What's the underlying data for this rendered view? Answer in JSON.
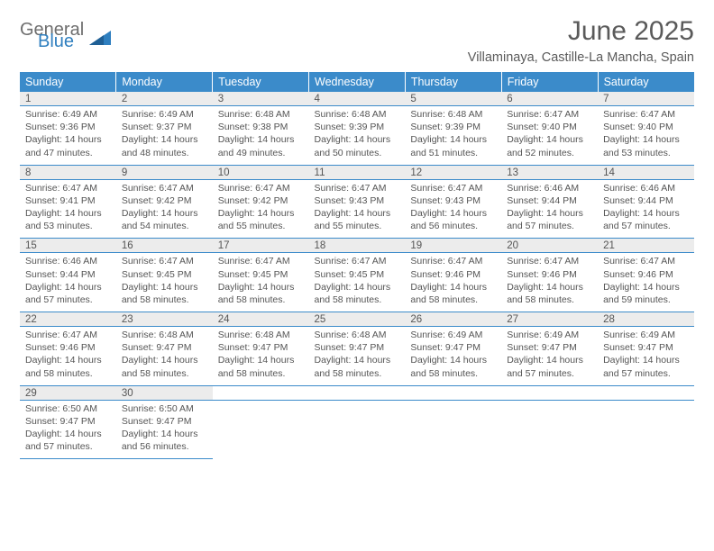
{
  "logo": {
    "text1": "General",
    "text2": "Blue"
  },
  "title": "June 2025",
  "location": "Villaminaya, Castille-La Mancha, Spain",
  "colors": {
    "header_bg": "#3b8bca",
    "header_text": "#ffffff",
    "daynum_bg": "#ececec",
    "border": "#3b8bca",
    "body_text": "#555555",
    "logo_gray": "#6e6e6e",
    "logo_blue": "#2f7fbf"
  },
  "weekdays": [
    "Sunday",
    "Monday",
    "Tuesday",
    "Wednesday",
    "Thursday",
    "Friday",
    "Saturday"
  ],
  "weeks": [
    [
      {
        "n": "1",
        "sr": "6:49 AM",
        "ss": "9:36 PM",
        "dl": "14 hours and 47 minutes."
      },
      {
        "n": "2",
        "sr": "6:49 AM",
        "ss": "9:37 PM",
        "dl": "14 hours and 48 minutes."
      },
      {
        "n": "3",
        "sr": "6:48 AM",
        "ss": "9:38 PM",
        "dl": "14 hours and 49 minutes."
      },
      {
        "n": "4",
        "sr": "6:48 AM",
        "ss": "9:39 PM",
        "dl": "14 hours and 50 minutes."
      },
      {
        "n": "5",
        "sr": "6:48 AM",
        "ss": "9:39 PM",
        "dl": "14 hours and 51 minutes."
      },
      {
        "n": "6",
        "sr": "6:47 AM",
        "ss": "9:40 PM",
        "dl": "14 hours and 52 minutes."
      },
      {
        "n": "7",
        "sr": "6:47 AM",
        "ss": "9:40 PM",
        "dl": "14 hours and 53 minutes."
      }
    ],
    [
      {
        "n": "8",
        "sr": "6:47 AM",
        "ss": "9:41 PM",
        "dl": "14 hours and 53 minutes."
      },
      {
        "n": "9",
        "sr": "6:47 AM",
        "ss": "9:42 PM",
        "dl": "14 hours and 54 minutes."
      },
      {
        "n": "10",
        "sr": "6:47 AM",
        "ss": "9:42 PM",
        "dl": "14 hours and 55 minutes."
      },
      {
        "n": "11",
        "sr": "6:47 AM",
        "ss": "9:43 PM",
        "dl": "14 hours and 55 minutes."
      },
      {
        "n": "12",
        "sr": "6:47 AM",
        "ss": "9:43 PM",
        "dl": "14 hours and 56 minutes."
      },
      {
        "n": "13",
        "sr": "6:46 AM",
        "ss": "9:44 PM",
        "dl": "14 hours and 57 minutes."
      },
      {
        "n": "14",
        "sr": "6:46 AM",
        "ss": "9:44 PM",
        "dl": "14 hours and 57 minutes."
      }
    ],
    [
      {
        "n": "15",
        "sr": "6:46 AM",
        "ss": "9:44 PM",
        "dl": "14 hours and 57 minutes."
      },
      {
        "n": "16",
        "sr": "6:47 AM",
        "ss": "9:45 PM",
        "dl": "14 hours and 58 minutes."
      },
      {
        "n": "17",
        "sr": "6:47 AM",
        "ss": "9:45 PM",
        "dl": "14 hours and 58 minutes."
      },
      {
        "n": "18",
        "sr": "6:47 AM",
        "ss": "9:45 PM",
        "dl": "14 hours and 58 minutes."
      },
      {
        "n": "19",
        "sr": "6:47 AM",
        "ss": "9:46 PM",
        "dl": "14 hours and 58 minutes."
      },
      {
        "n": "20",
        "sr": "6:47 AM",
        "ss": "9:46 PM",
        "dl": "14 hours and 58 minutes."
      },
      {
        "n": "21",
        "sr": "6:47 AM",
        "ss": "9:46 PM",
        "dl": "14 hours and 59 minutes."
      }
    ],
    [
      {
        "n": "22",
        "sr": "6:47 AM",
        "ss": "9:46 PM",
        "dl": "14 hours and 58 minutes."
      },
      {
        "n": "23",
        "sr": "6:48 AM",
        "ss": "9:47 PM",
        "dl": "14 hours and 58 minutes."
      },
      {
        "n": "24",
        "sr": "6:48 AM",
        "ss": "9:47 PM",
        "dl": "14 hours and 58 minutes."
      },
      {
        "n": "25",
        "sr": "6:48 AM",
        "ss": "9:47 PM",
        "dl": "14 hours and 58 minutes."
      },
      {
        "n": "26",
        "sr": "6:49 AM",
        "ss": "9:47 PM",
        "dl": "14 hours and 58 minutes."
      },
      {
        "n": "27",
        "sr": "6:49 AM",
        "ss": "9:47 PM",
        "dl": "14 hours and 57 minutes."
      },
      {
        "n": "28",
        "sr": "6:49 AM",
        "ss": "9:47 PM",
        "dl": "14 hours and 57 minutes."
      }
    ],
    [
      {
        "n": "29",
        "sr": "6:50 AM",
        "ss": "9:47 PM",
        "dl": "14 hours and 57 minutes."
      },
      {
        "n": "30",
        "sr": "6:50 AM",
        "ss": "9:47 PM",
        "dl": "14 hours and 56 minutes."
      },
      null,
      null,
      null,
      null,
      null
    ]
  ],
  "labels": {
    "sunrise": "Sunrise:",
    "sunset": "Sunset:",
    "daylight": "Daylight:"
  }
}
